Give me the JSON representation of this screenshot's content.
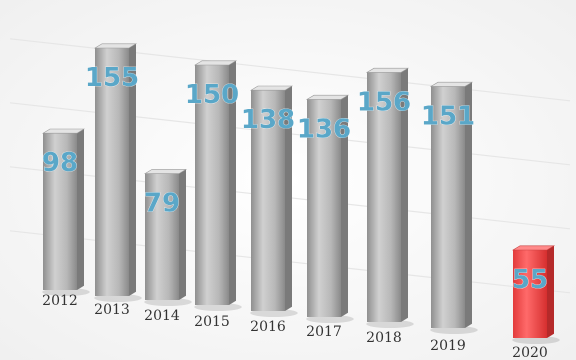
{
  "chart_data": {
    "type": "bar",
    "categories": [
      "2012",
      "2013",
      "2014",
      "2015",
      "2016",
      "2017",
      "2018",
      "2019",
      "2020"
    ],
    "values": [
      98,
      155,
      79,
      150,
      138,
      136,
      156,
      151,
      55
    ],
    "value_labels": [
      "98",
      "155",
      "79",
      "150",
      "138",
      "136",
      "156",
      "151",
      "55"
    ],
    "title": "",
    "xlabel": "",
    "ylabel": "",
    "ylim": [
      0,
      160
    ],
    "grid": true,
    "colors": {
      "bar": "#a9a9a9",
      "bar_highlight": "#f04040",
      "label": "#5aa7c8",
      "tick": "#333333"
    },
    "highlight_index": 8
  }
}
